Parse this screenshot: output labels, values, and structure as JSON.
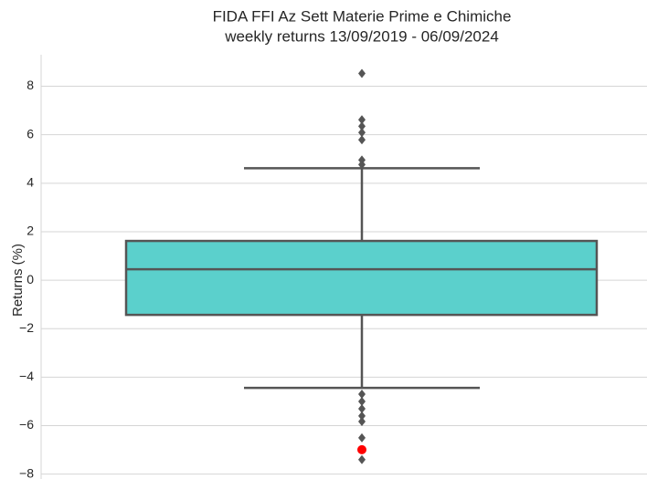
{
  "chart_data": {
    "type": "box",
    "title": "FIDA FFI Az Sett Materie Prime e Chimiche",
    "subtitle": "weekly returns 13/09/2019 - 06/09/2024",
    "ylabel": "Returns (%)",
    "ylim": [
      -8.2,
      9.3
    ],
    "yticks": [
      {
        "value": -8,
        "label": "−8"
      },
      {
        "value": -6,
        "label": "−6"
      },
      {
        "value": -4,
        "label": "−4"
      },
      {
        "value": -2,
        "label": "−2"
      },
      0,
      2,
      4,
      6,
      8
    ],
    "grid": true,
    "color": "#5bd0cc",
    "edge_color": "#555555",
    "stats": {
      "whislo": -4.44,
      "q1": -1.43,
      "median": 0.45,
      "q3": 1.62,
      "whishi": 4.62
    },
    "outliers": [
      8.53,
      6.62,
      6.35,
      6.09,
      5.79,
      4.96,
      4.77,
      -4.7,
      -5.0,
      -5.3,
      -5.6,
      -5.83,
      -6.5,
      -7.4
    ],
    "highlight": {
      "value": -6.99,
      "color": "#ff0000"
    }
  }
}
